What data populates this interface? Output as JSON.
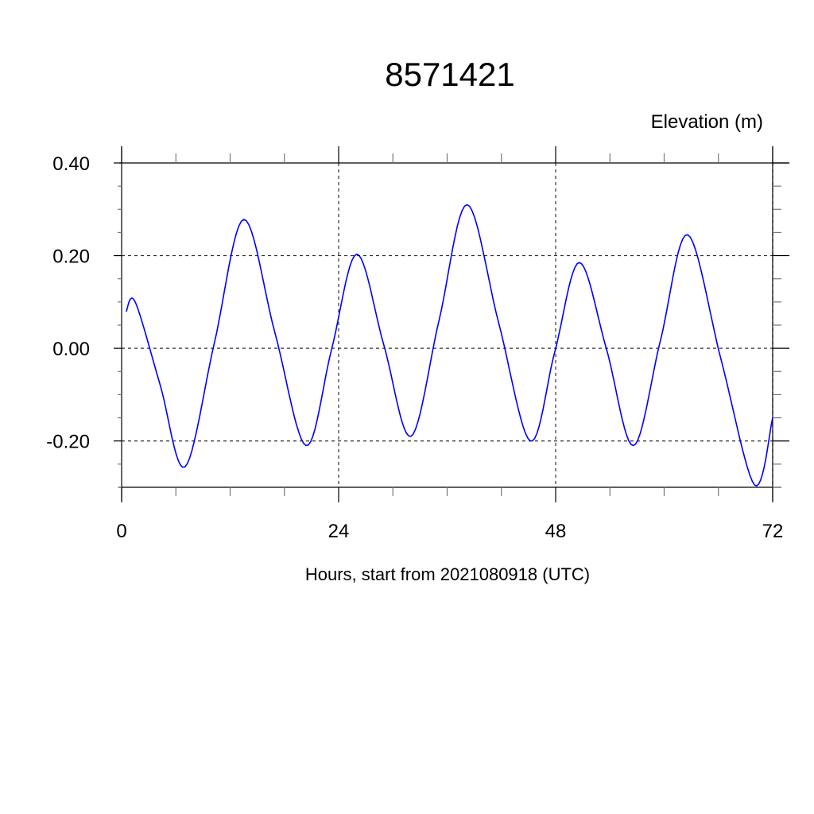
{
  "chart_data": {
    "type": "line",
    "title": "8571421",
    "ylabel": "Elevation (m)",
    "xlabel": "Hours, start from 2021080918 (UTC)",
    "xlim": [
      0,
      72
    ],
    "ylim": [
      -0.3,
      0.4
    ],
    "x_ticks": [
      0,
      24,
      48,
      72
    ],
    "x_tick_labels": [
      "0",
      "24",
      "48",
      "72"
    ],
    "x_minor_step": 6,
    "y_ticks": [
      0.4,
      0.2,
      0.0,
      -0.2
    ],
    "y_tick_labels": [
      "0.40",
      "0.20",
      "0.00",
      "-0.20"
    ],
    "y_minor_step": 0.05,
    "grid": true,
    "grid_style": "dashed",
    "line_color": "#0000ff",
    "series": [
      {
        "x": [
          0.5,
          1.5,
          4.25,
          7.0,
          10.25,
          13.5,
          16.95,
          20.4,
          23.2,
          26.0,
          29.0,
          32.0,
          35.1,
          38.2,
          41.7,
          45.2,
          47.9,
          50.6,
          53.6,
          56.6,
          59.6,
          62.6,
          66.3,
          70.0,
          72.0
        ],
        "y": [
          0.079,
          0.1,
          -0.078,
          -0.256,
          0.011,
          0.278,
          0.034,
          -0.21,
          -0.004,
          0.203,
          0.007,
          -0.19,
          0.06,
          0.31,
          0.055,
          -0.2,
          -0.008,
          0.185,
          0.0,
          -0.21,
          0.018,
          0.245,
          -0.025,
          -0.295,
          -0.15
        ]
      }
    ]
  }
}
